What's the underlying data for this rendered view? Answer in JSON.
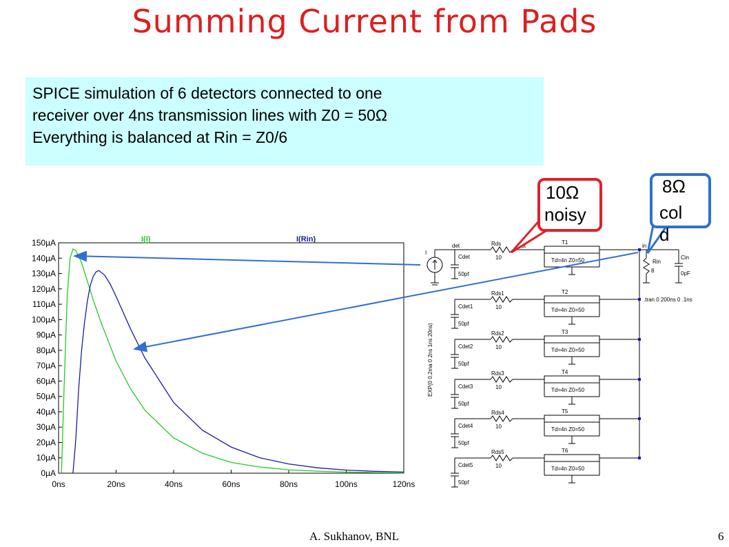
{
  "title": "Summing Current from Pads",
  "info_box": {
    "lines": [
      "SPICE simulation of 6 detectors connected to one",
      "receiver over 4ns transmission lines with Z0 = 50Ω",
      "Everything is balanced at Rin = Z0/6"
    ]
  },
  "callouts": {
    "noisy": {
      "line1": "10Ω",
      "line2": "noisy"
    },
    "cold": {
      "line1": "8Ω",
      "line2": "col",
      "line3": "d"
    }
  },
  "colors": {
    "title": "#dd1f1f",
    "info_bg": "#ccffff",
    "green_trace": "#22cc22",
    "blue_trace": "#1a1aa0",
    "callout_red": "#e0202a",
    "callout_blue": "#2f6fd1"
  },
  "schematic": {
    "source_label": "I",
    "source_spec": "EXP(0 0.2ma 0 2ns 1ns 20ns)",
    "det_label": "det",
    "out_label": "out",
    "in_label": "in",
    "tran_cmd": ".tran 0 200ns 0 .1ns",
    "rin": {
      "name": "Rin",
      "value": "8"
    },
    "cin": {
      "name": "Cin",
      "value": "0pF"
    },
    "rows": [
      {
        "cdet": "Cdet",
        "cval": "50pf",
        "rds": "Rds",
        "rval": "10",
        "tline": "T1",
        "tspec": "Td=4n  Z0=50"
      },
      {
        "cdet": "Cdet1",
        "cval": "50pf",
        "rds": "Rds1",
        "rval": "10",
        "tline": "T2",
        "tspec": "Td=4n  Z0=50"
      },
      {
        "cdet": "Cdet2",
        "cval": "50pf",
        "rds": "Rds2",
        "rval": "10",
        "tline": "T3",
        "tspec": "Td=4n  Z0=50"
      },
      {
        "cdet": "Cdet3",
        "cval": "50pf",
        "rds": "Rds3",
        "rval": "10",
        "tline": "T4",
        "tspec": "Td=4n  Z0=50"
      },
      {
        "cdet": "Cdet4",
        "cval": "50pf",
        "rds": "Rds4",
        "rval": "10",
        "tline": "T5",
        "tspec": "Td=4n  Z0=50"
      },
      {
        "cdet": "Cdet5",
        "cval": "50pf",
        "rds": "Rds5",
        "rval": "10",
        "tline": "T6",
        "tspec": "Td=4n  Z0=50"
      }
    ]
  },
  "chart_data": {
    "type": "line",
    "title": "",
    "xlabel": "",
    "ylabel": "",
    "x_ticks": [
      "0ns",
      "20ns",
      "40ns",
      "60ns",
      "80ns",
      "100ns",
      "120ns"
    ],
    "y_ticks": [
      "0µA",
      "10µA",
      "20µA",
      "30µA",
      "40µA",
      "50µA",
      "60µA",
      "70µA",
      "80µA",
      "90µA",
      "100µA",
      "110µA",
      "120µA",
      "130µA",
      "140µA",
      "150µA"
    ],
    "xlim": [
      0,
      120
    ],
    "ylim": [
      0,
      150
    ],
    "x_unit": "ns",
    "y_unit": "µA",
    "grid": false,
    "legend_position": "top",
    "series": [
      {
        "name": "I(I)",
        "color": "#22cc22",
        "x": [
          1,
          2,
          3,
          4,
          5,
          6,
          8,
          10,
          12,
          15,
          20,
          25,
          30,
          40,
          50,
          60,
          70,
          80,
          90,
          100,
          110,
          120
        ],
        "values": [
          0,
          60,
          115,
          140,
          146,
          145,
          137,
          125,
          113,
          97,
          73,
          55,
          41,
          23,
          13,
          7,
          4,
          2.2,
          1.3,
          0.7,
          0.4,
          0.2
        ]
      },
      {
        "name": "I(Rin)",
        "color": "#1a1aa0",
        "x": [
          5,
          6,
          7,
          8,
          9,
          10,
          11,
          12,
          13,
          14,
          16,
          18,
          20,
          25,
          30,
          40,
          50,
          60,
          70,
          80,
          90,
          100,
          110,
          120
        ],
        "values": [
          0,
          22,
          55,
          80,
          98,
          112,
          122,
          128,
          131,
          132,
          129,
          123,
          115,
          94,
          75,
          46,
          28,
          17,
          10,
          6,
          3.5,
          2,
          1.2,
          0.7
        ]
      }
    ]
  },
  "footer": {
    "author": "A. Sukhanov, BNL",
    "page": "6"
  }
}
